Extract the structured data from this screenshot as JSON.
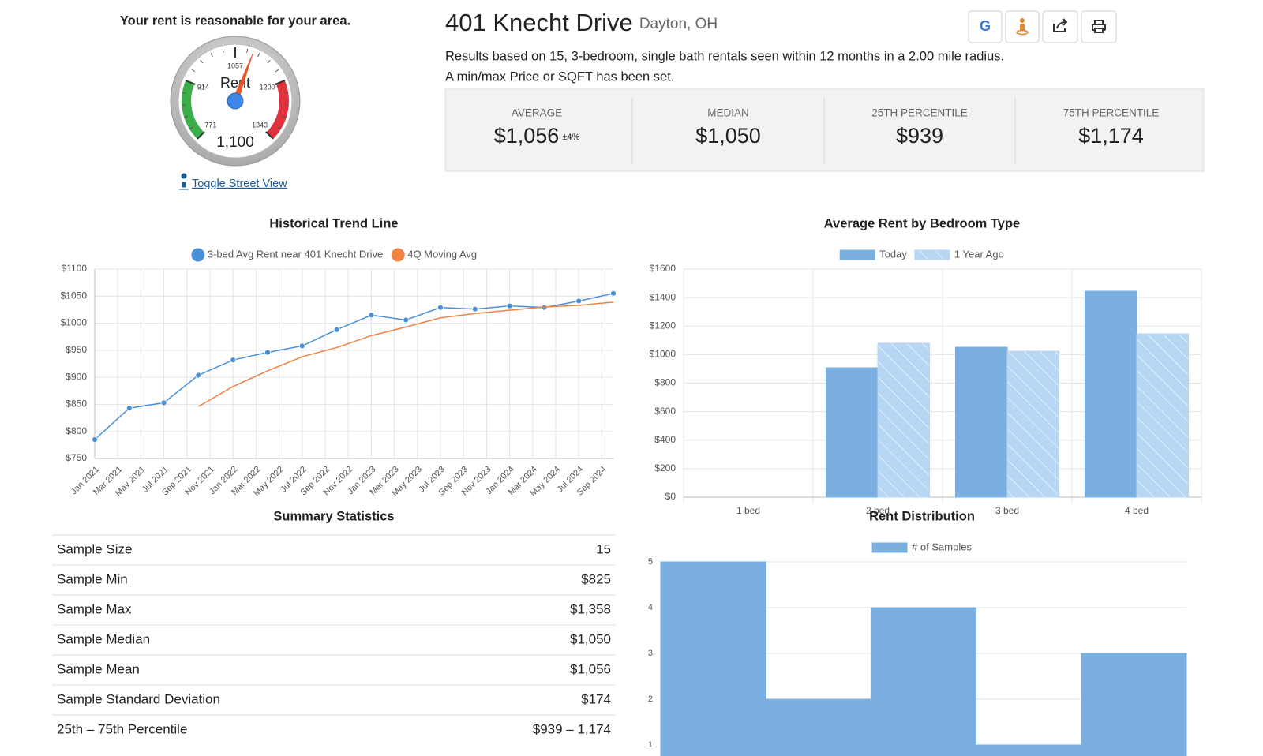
{
  "chart_data": [
    {
      "type": "gauge",
      "title": "Your rent is reasonable for your area.",
      "label": "Rent",
      "values": [
        1100
      ],
      "value_labels": [
        "1,100"
      ],
      "lim": [
        771,
        1343
      ],
      "ticks": [
        771,
        914,
        1057,
        1200,
        1343
      ],
      "bands": [
        {
          "from": 771,
          "to": 914,
          "color": "#3cae49"
        },
        {
          "from": 1200,
          "to": 1343,
          "color": "#e0313c"
        }
      ],
      "needle_color": "#e8572a",
      "hub_color": "#3d86e6"
    },
    {
      "type": "line",
      "title": "Historical Trend Line",
      "xlim": [
        "Jan 2021",
        "Oct 2024"
      ],
      "xticks": [
        "Jan 2021",
        "Mar 2021",
        "May 2021",
        "Jul 2021",
        "Sep 2021",
        "Nov 2021",
        "Jan 2022",
        "Mar 2022",
        "May 2022",
        "Jul 2022",
        "Sep 2022",
        "Nov 2022",
        "Jan 2023",
        "Mar 2023",
        "May 2023",
        "Jul 2023",
        "Sep 2023",
        "Nov 2023",
        "Jan 2024",
        "Mar 2024",
        "May 2024",
        "Jul 2024",
        "Sep 2024"
      ],
      "ylim": [
        750,
        1100
      ],
      "yticks": [
        {
          "value": 750,
          "label": "$750"
        },
        {
          "value": 800,
          "label": "$800"
        },
        {
          "value": 850,
          "label": "$850"
        },
        {
          "value": 900,
          "label": "$900"
        },
        {
          "value": 950,
          "label": "$950"
        },
        {
          "value": 1000,
          "label": "$1000"
        },
        {
          "value": 1050,
          "label": "$1050"
        },
        {
          "value": 1100,
          "label": "$1100"
        }
      ],
      "grid": true,
      "legend": "top",
      "series": [
        {
          "name": "3-bed Avg Rent near 401 Knecht Drive",
          "color": "#4a90d9",
          "markers": true,
          "x": [
            "Jan 2021",
            "Apr 2021",
            "Jul 2021",
            "Oct 2021",
            "Jan 2022",
            "Apr 2022",
            "Jul 2022",
            "Oct 2022",
            "Jan 2023",
            "Apr 2023",
            "Jul 2023",
            "Oct 2023",
            "Jan 2024",
            "Apr 2024",
            "Jul 2024",
            "Oct 2024"
          ],
          "values": [
            785,
            843,
            853,
            904,
            932,
            946,
            958,
            988,
            1015,
            1006,
            1029,
            1026,
            1032,
            1029,
            1041,
            1055
          ]
        },
        {
          "name": "4Q Moving Avg",
          "color": "#ee8343",
          "markers": false,
          "x": [
            "Oct 2021",
            "Jan 2022",
            "Apr 2022",
            "Jul 2022",
            "Oct 2022",
            "Jan 2023",
            "Apr 2023",
            "Jul 2023",
            "Oct 2023",
            "Jan 2024",
            "Apr 2024",
            "Jul 2024",
            "Oct 2024"
          ],
          "values": [
            846,
            883,
            912,
            938,
            955,
            977,
            993,
            1010,
            1018,
            1024,
            1030,
            1033,
            1039
          ]
        }
      ]
    },
    {
      "type": "bar",
      "title": "Average Rent by Bedroom Type",
      "categories": [
        "1 bed",
        "2 bed",
        "3 bed",
        "4 bed"
      ],
      "ylim": [
        0,
        1600
      ],
      "yticks": [
        {
          "value": 0,
          "label": "$0"
        },
        {
          "value": 200,
          "label": "$200"
        },
        {
          "value": 400,
          "label": "$400"
        },
        {
          "value": 600,
          "label": "$600"
        },
        {
          "value": 800,
          "label": "$800"
        },
        {
          "value": 1000,
          "label": "$1000"
        },
        {
          "value": 1200,
          "label": "$1200"
        },
        {
          "value": 1400,
          "label": "$1400"
        },
        {
          "value": 1600,
          "label": "$1600"
        }
      ],
      "grid": true,
      "legend": "top",
      "series": [
        {
          "name": "Today",
          "color": "#7aafe0",
          "values": [
            null,
            908,
            1052,
            1445
          ]
        },
        {
          "name": "1 Year Ago",
          "color": "#b7d6f3",
          "hatch": true,
          "values": [
            null,
            1080,
            1024,
            1146
          ]
        }
      ]
    },
    {
      "type": "bar",
      "title": "Rent Distribution",
      "categories": [
        null,
        null,
        null,
        null,
        null
      ],
      "gapless": true,
      "ylim": [
        0,
        5
      ],
      "yticks": [
        1,
        2,
        3,
        4,
        5
      ],
      "grid": true,
      "legend": "top",
      "series": [
        {
          "name": "# of Samples",
          "color": "#7aafe0",
          "values": [
            5,
            2,
            4,
            1,
            3
          ]
        }
      ]
    }
  ],
  "header": {
    "title": "401 Knecht Drive",
    "location": "Dayton, OH",
    "description": "Results based on 15, 3-bedroom, single bath rentals seen within 12 months in a 2.00 mile radius.",
    "note": "A min/max Price or SQFT has been set."
  },
  "google_icon": "G",
  "street_view_link": "Toggle Street View",
  "stats": [
    {
      "label": "AVERAGE",
      "value": "$1,056",
      "note": "±4%"
    },
    {
      "label": "MEDIAN",
      "value": "$1,050"
    },
    {
      "label": "25TH PERCENTILE",
      "value": "$939"
    },
    {
      "label": "75TH PERCENTILE",
      "value": "$1,174"
    }
  ],
  "summary": {
    "title": "Summary Statistics",
    "rows": [
      [
        "Sample Size",
        "15"
      ],
      [
        "Sample Min",
        "$825"
      ],
      [
        "Sample Max",
        "$1,358"
      ],
      [
        "Sample Median",
        "$1,050"
      ],
      [
        "Sample Mean",
        "$1,056"
      ],
      [
        "Sample Standard Deviation",
        "$174"
      ],
      [
        "25th – 75th Percentile",
        "$939 – 1,174"
      ]
    ]
  }
}
